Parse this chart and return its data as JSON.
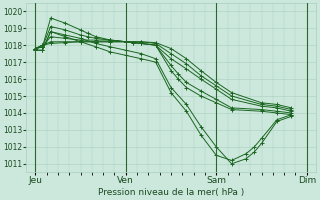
{
  "background_color": "#cce8dc",
  "grid_color": "#aacfbf",
  "line_color": "#1a6620",
  "title": "Pression niveau de la mer( hPa )",
  "ylim": [
    1010.5,
    1020.5
  ],
  "yticks": [
    1011,
    1012,
    1013,
    1014,
    1015,
    1016,
    1017,
    1018,
    1019,
    1020
  ],
  "xtick_labels": [
    "Jeu",
    "Ven",
    "Sam",
    "Dim"
  ],
  "xtick_positions": [
    0,
    1,
    2,
    3
  ],
  "lines_xy": [
    {
      "x": [
        0.0,
        0.08,
        0.17,
        0.33,
        0.5,
        0.58,
        0.67,
        0.83,
        1.0,
        1.08,
        1.17,
        1.33,
        1.5,
        1.58,
        1.67,
        1.83,
        2.0,
        2.17,
        2.5,
        2.67,
        2.83
      ],
      "y": [
        1017.8,
        1017.9,
        1019.6,
        1019.3,
        1018.9,
        1018.7,
        1018.5,
        1018.3,
        1018.2,
        1018.15,
        1018.1,
        1018.0,
        1016.5,
        1016.0,
        1015.5,
        1015.0,
        1014.6,
        1014.2,
        1014.1,
        1014.0,
        1013.9
      ]
    },
    {
      "x": [
        0.0,
        0.08,
        0.17,
        0.33,
        0.5,
        0.58,
        0.67,
        0.83,
        1.0,
        1.08,
        1.17,
        1.33,
        1.5,
        1.58,
        1.67,
        1.83,
        2.0,
        2.17,
        2.5,
        2.67,
        2.83
      ],
      "y": [
        1017.8,
        1017.9,
        1019.1,
        1018.9,
        1018.6,
        1018.5,
        1018.4,
        1018.3,
        1018.2,
        1018.15,
        1018.1,
        1018.0,
        1016.8,
        1016.3,
        1015.8,
        1015.3,
        1014.8,
        1014.3,
        1014.2,
        1014.1,
        1014.0
      ]
    },
    {
      "x": [
        0.0,
        0.08,
        0.17,
        0.33,
        0.5,
        0.67,
        0.83,
        1.0,
        1.17,
        1.33,
        1.5,
        1.67,
        1.83,
        2.0,
        2.17,
        2.5,
        2.67,
        2.83
      ],
      "y": [
        1017.8,
        1017.9,
        1018.5,
        1018.4,
        1018.3,
        1018.3,
        1018.3,
        1018.2,
        1018.1,
        1018.0,
        1017.2,
        1016.6,
        1016.0,
        1015.4,
        1014.8,
        1014.4,
        1014.3,
        1014.1
      ]
    },
    {
      "x": [
        0.0,
        0.08,
        0.17,
        0.33,
        0.5,
        0.67,
        0.83,
        1.0,
        1.17,
        1.33,
        1.5,
        1.67,
        1.83,
        2.0,
        2.17,
        2.5,
        2.67,
        2.83
      ],
      "y": [
        1017.8,
        1018.0,
        1018.2,
        1018.2,
        1018.2,
        1018.2,
        1018.2,
        1018.2,
        1018.2,
        1018.1,
        1017.5,
        1016.9,
        1016.2,
        1015.6,
        1015.0,
        1014.5,
        1014.4,
        1014.2
      ]
    },
    {
      "x": [
        0.0,
        0.08,
        0.17,
        0.33,
        0.5,
        0.67,
        0.83,
        1.0,
        1.17,
        1.33,
        1.5,
        1.67,
        1.83,
        2.0,
        2.17,
        2.5,
        2.67,
        2.83
      ],
      "y": [
        1017.8,
        1018.0,
        1018.1,
        1018.15,
        1018.2,
        1018.2,
        1018.2,
        1018.2,
        1018.2,
        1018.15,
        1017.8,
        1017.2,
        1016.5,
        1015.8,
        1015.2,
        1014.6,
        1014.5,
        1014.3
      ]
    },
    {
      "x": [
        0.0,
        0.08,
        0.17,
        0.33,
        0.5,
        0.67,
        0.83,
        1.0,
        1.17,
        1.33,
        1.5,
        1.67,
        1.83,
        2.0,
        2.17,
        2.33,
        2.42,
        2.5,
        2.67,
        2.83
      ],
      "y": [
        1017.7,
        1017.7,
        1018.8,
        1018.6,
        1018.4,
        1018.1,
        1017.9,
        1017.7,
        1017.5,
        1017.2,
        1015.5,
        1014.5,
        1013.2,
        1012.0,
        1011.0,
        1011.3,
        1011.7,
        1012.2,
        1013.5,
        1013.8
      ]
    },
    {
      "x": [
        0.0,
        0.08,
        0.17,
        0.33,
        0.5,
        0.67,
        0.83,
        1.0,
        1.17,
        1.33,
        1.5,
        1.67,
        1.83,
        2.0,
        2.17,
        2.33,
        2.42,
        2.5,
        2.67,
        2.83
      ],
      "y": [
        1017.7,
        1017.7,
        1018.8,
        1018.5,
        1018.2,
        1017.9,
        1017.6,
        1017.4,
        1017.2,
        1017.0,
        1015.2,
        1014.1,
        1012.7,
        1011.5,
        1011.2,
        1011.6,
        1012.0,
        1012.5,
        1013.6,
        1013.9
      ]
    }
  ]
}
